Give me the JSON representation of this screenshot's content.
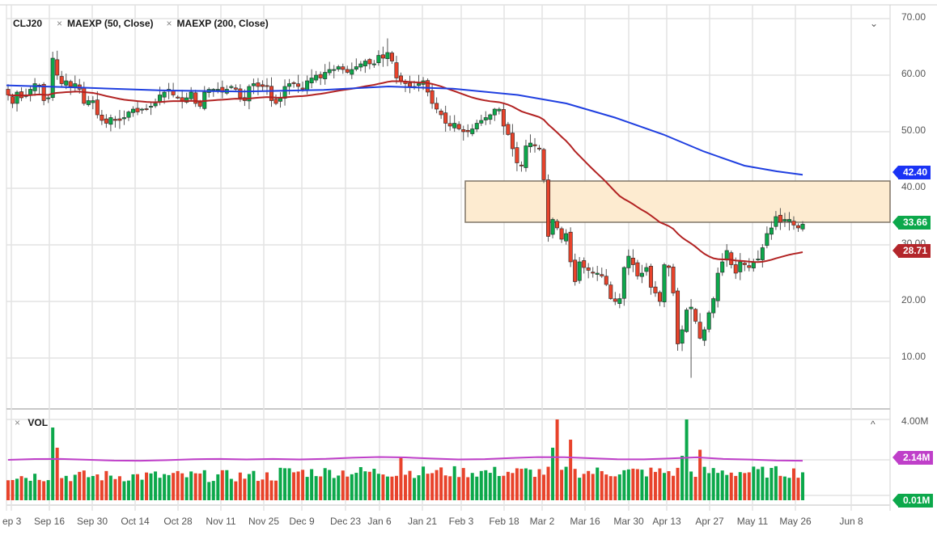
{
  "legend": {
    "symbol": "CLJ20",
    "indicators": [
      {
        "label": "MAEXP (50, Close)",
        "color": "#b22222"
      },
      {
        "label": "MAEXP (200, Close)",
        "color": "#1f3fe0"
      }
    ],
    "remove_icon": "×",
    "collapse_icon": "⌄"
  },
  "volume_panel": {
    "label": "VOL",
    "remove_icon": "×",
    "collapse_icon": "^",
    "axis_labels": [
      "4.00M"
    ],
    "tags": [
      {
        "value": "2.14M",
        "color": "#bf3fc9"
      },
      {
        "value": "0.01M",
        "color": "#0ca84b"
      }
    ]
  },
  "price_axis": {
    "labels": [
      "70.00",
      "60.00",
      "50.00",
      "40.00",
      "30.00",
      "20.00",
      "10.00"
    ],
    "tags": [
      {
        "value": "42.40",
        "color": "#1a33f5"
      },
      {
        "value": "33.66",
        "color": "#0ca84b"
      },
      {
        "value": "28.71",
        "color": "#b3262b"
      }
    ]
  },
  "x_axis": {
    "labels": [
      "Sep 3",
      "Sep 16",
      "Sep 30",
      "Oct 14",
      "Oct 28",
      "Nov 11",
      "Nov 25",
      "Dec 9",
      "Dec 23",
      "Jan 6",
      "Jan 21",
      "Feb 3",
      "Feb 18",
      "Mar 2",
      "Mar 16",
      "Mar 30",
      "Apr 13",
      "Apr 27",
      "May 11",
      "May 26",
      "Jun 8"
    ]
  },
  "colors": {
    "up": "#0ca84b",
    "down": "#e8432b",
    "ma50": "#b22222",
    "ma200": "#1f3fe0",
    "vol_ma": "#bf3fc9",
    "zone_fill": "#fdebd0",
    "zone_border": "#7f7466",
    "grid": "#e3e3e3"
  },
  "chart_data": {
    "type": "candlestick",
    "title": "CLJ20",
    "ylim": [
      0,
      72
    ],
    "yticks": [
      10,
      20,
      30,
      40,
      50,
      60,
      70
    ],
    "last_price": 33.66,
    "ma50_last": 28.71,
    "ma200_last": 42.4,
    "resistance_zone": {
      "from_date": "Feb 3",
      "to_date": "Jun 8+",
      "low": 33.7,
      "high": 41.2
    },
    "x_labels": [
      "Sep 3",
      "Sep 16",
      "Sep 30",
      "Oct 14",
      "Oct 28",
      "Nov 11",
      "Nov 25",
      "Dec 9",
      "Dec 23",
      "Jan 6",
      "Jan 21",
      "Feb 3",
      "Feb 18",
      "Mar 2",
      "Mar 16",
      "Mar 30",
      "Apr 13",
      "Apr 27",
      "May 11",
      "May 26",
      "Jun 8"
    ],
    "candles_close_approx": [
      56.5,
      55.0,
      57.0,
      56.0,
      56.5,
      57.5,
      58.5,
      58.0,
      55.5,
      56.0,
      63.0,
      60.0,
      58.5,
      59.0,
      58.0,
      58.5,
      57.5,
      55.0,
      55.5,
      55.5,
      53.0,
      52.0,
      51.5,
      52.5,
      52.0,
      52.0,
      52.5,
      53.5,
      54.0,
      53.5,
      54.0,
      54.0,
      54.5,
      55.0,
      56.5,
      57.0,
      57.5,
      56.5,
      56.0,
      55.5,
      56.0,
      57.0,
      55.0,
      54.5,
      57.0,
      57.5,
      57.5,
      57.5,
      57.0,
      57.5,
      58.0,
      57.5,
      56.0,
      55.5,
      58.0,
      58.5,
      58.0,
      58.0,
      58.0,
      55.5,
      55.0,
      56.0,
      58.0,
      58.5,
      58.5,
      58.0,
      57.5,
      59.0,
      59.5,
      60.0,
      59.5,
      60.5,
      61.0,
      61.0,
      61.5,
      61.0,
      60.5,
      61.0,
      61.5,
      62.0,
      62.5,
      62.0,
      62.0,
      63.5,
      63.0,
      64.0,
      62.5,
      59.5,
      59.0,
      58.5,
      58.0,
      58.0,
      58.5,
      59.0,
      57.0,
      55.0,
      54.0,
      53.0,
      51.5,
      51.0,
      51.5,
      50.5,
      50.0,
      50.0,
      50.5,
      51.5,
      52.0,
      52.5,
      53.0,
      54.0,
      54.0,
      51.0,
      49.5,
      47.0,
      44.5,
      44.0,
      47.5,
      48.0,
      47.5,
      47.0,
      41.5,
      31.5,
      34.5,
      33.0,
      31.0,
      32.0,
      27.0,
      23.5,
      27.0,
      26.0,
      25.5,
      25.0,
      25.0,
      24.5,
      23.0,
      20.5,
      20.0,
      20.5,
      26.0,
      28.0,
      26.5,
      24.5,
      25.0,
      26.0,
      22.5,
      21.5,
      20.0,
      26.5,
      26.0,
      21.5,
      12.5,
      15.0,
      18.5,
      19.0,
      16.5,
      13.5,
      15.0,
      18.0,
      20.5,
      25.0,
      27.0,
      29.0,
      26.5,
      25.0,
      27.0,
      26.5,
      26.0,
      27.0,
      27.5,
      29.5,
      32.0,
      33.0,
      35.0,
      34.0,
      34.5,
      34.5,
      33.5,
      33.0,
      33.66
    ],
    "volume_axis": {
      "max_label": "4.00M",
      "ma_last": "2.14M",
      "last": "0.01M"
    }
  }
}
